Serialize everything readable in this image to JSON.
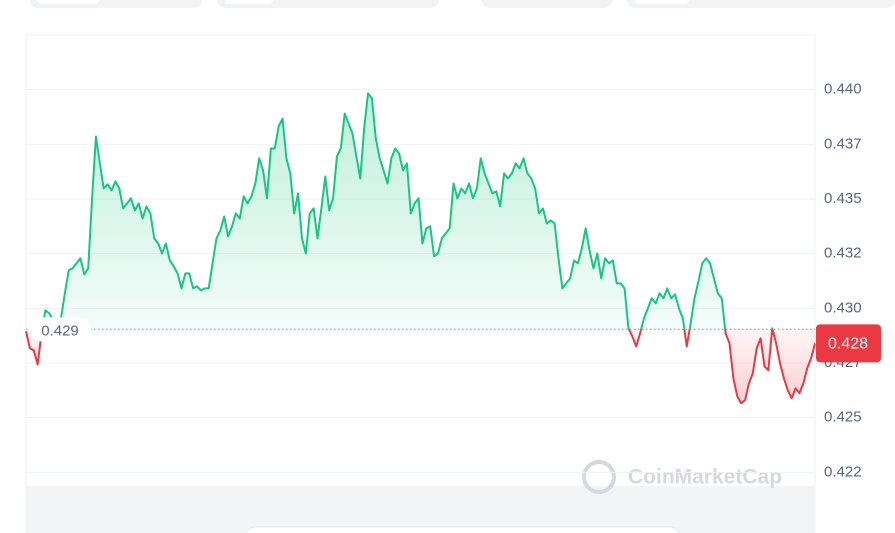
{
  "chart_data": {
    "type": "line",
    "watermark": "CoinMarketCap",
    "values": [
      0.42895,
      0.42817,
      0.42808,
      0.42744,
      0.42886,
      0.42991,
      0.42977,
      0.42945,
      0.42909,
      0.42954,
      0.43069,
      0.43174,
      0.43183,
      0.43206,
      0.43229,
      0.43155,
      0.43183,
      0.43503,
      0.43786,
      0.43663,
      0.43548,
      0.43567,
      0.43539,
      0.4358,
      0.43548,
      0.43457,
      0.4348,
      0.43503,
      0.43448,
      0.4348,
      0.43411,
      0.43466,
      0.43434,
      0.4332,
      0.43297,
      0.43251,
      0.43297,
      0.43219,
      0.43192,
      0.4316,
      0.43091,
      0.4316,
      0.4316,
      0.43091,
      0.43101,
      0.43082,
      0.43091,
      0.43091,
      0.43206,
      0.4332,
      0.43356,
      0.4342,
      0.43329,
      0.43375,
      0.43434,
      0.43411,
      0.43512,
      0.4348,
      0.43512,
      0.43571,
      0.43686,
      0.43631,
      0.43503,
      0.43731,
      0.43731,
      0.43832,
      0.43868,
      0.43686,
      0.43617,
      0.43434,
      0.43526,
      0.4332,
      0.43251,
      0.43434,
      0.43457,
      0.4332,
      0.43457,
      0.43603,
      0.43448,
      0.43503,
      0.43695,
      0.43731,
      0.43891,
      0.43845,
      0.438,
      0.43695,
      0.43594,
      0.43823,
      0.43983,
      0.4396,
      0.43777,
      0.43686,
      0.43631,
      0.43571,
      0.43686,
      0.43731,
      0.43708,
      0.43631,
      0.43663,
      0.43434,
      0.4348,
      0.43503,
      0.43297,
      0.43366,
      0.43375,
      0.43238,
      0.43251,
      0.4332,
      0.43343,
      0.43366,
      0.43571,
      0.43503,
      0.43548,
      0.43526,
      0.43571,
      0.43503,
      0.43548,
      0.43686,
      0.43617,
      0.43571,
      0.43526,
      0.43535,
      0.43466,
      0.43617,
      0.43594,
      0.43617,
      0.43663,
      0.4364,
      0.43686,
      0.43617,
      0.43594,
      0.43548,
      0.43434,
      0.43457,
      0.43388,
      0.43402,
      0.43388,
      0.43229,
      0.43091,
      0.43114,
      0.43137,
      0.43219,
      0.43206,
      0.43274,
      0.43366,
      0.43265,
      0.43183,
      0.43251,
      0.43137,
      0.43229,
      0.43206,
      0.43219,
      0.43114,
      0.43114,
      0.43091,
      0.42909,
      0.42872,
      0.42826,
      0.42886,
      0.42954,
      0.43,
      0.43046,
      0.43023,
      0.43069,
      0.43046,
      0.43091,
      0.43046,
      0.43064,
      0.43,
      0.42954,
      0.42826,
      0.42931,
      0.43046,
      0.43123,
      0.43206,
      0.43229,
      0.43206,
      0.43137,
      0.43069,
      0.43046,
      0.42886,
      0.4284,
      0.4268,
      0.42598,
      0.42566,
      0.4258,
      0.42657,
      0.42703,
      0.42817,
      0.42863,
      0.42735,
      0.42717,
      0.42909,
      0.4284,
      0.42749,
      0.4268,
      0.42625,
      0.42589,
      0.42634,
      0.42612,
      0.42657,
      0.42726,
      0.42772,
      0.4284
    ],
    "colors": {
      "up": "#16c784",
      "down": "#ea3943"
    },
    "baseline": {
      "value": 0.42904,
      "label": "0.429"
    },
    "current_price": {
      "value": 0.4284,
      "label": "0.428"
    },
    "ylim": [
      0.42,
      0.4425
    ],
    "yticks": [
      {
        "value": 0.44,
        "label": "0.440"
      },
      {
        "value": 0.4375,
        "label": "0.437"
      },
      0.435,
      {
        "value": 0.4325,
        "label": "0.432"
      },
      {
        "value": 0.43,
        "label": "0.430"
      },
      {
        "value": 0.4275,
        "label": "0.427"
      },
      0.425,
      {
        "value": 0.4225,
        "label": "0.422"
      }
    ],
    "grid": true
  }
}
